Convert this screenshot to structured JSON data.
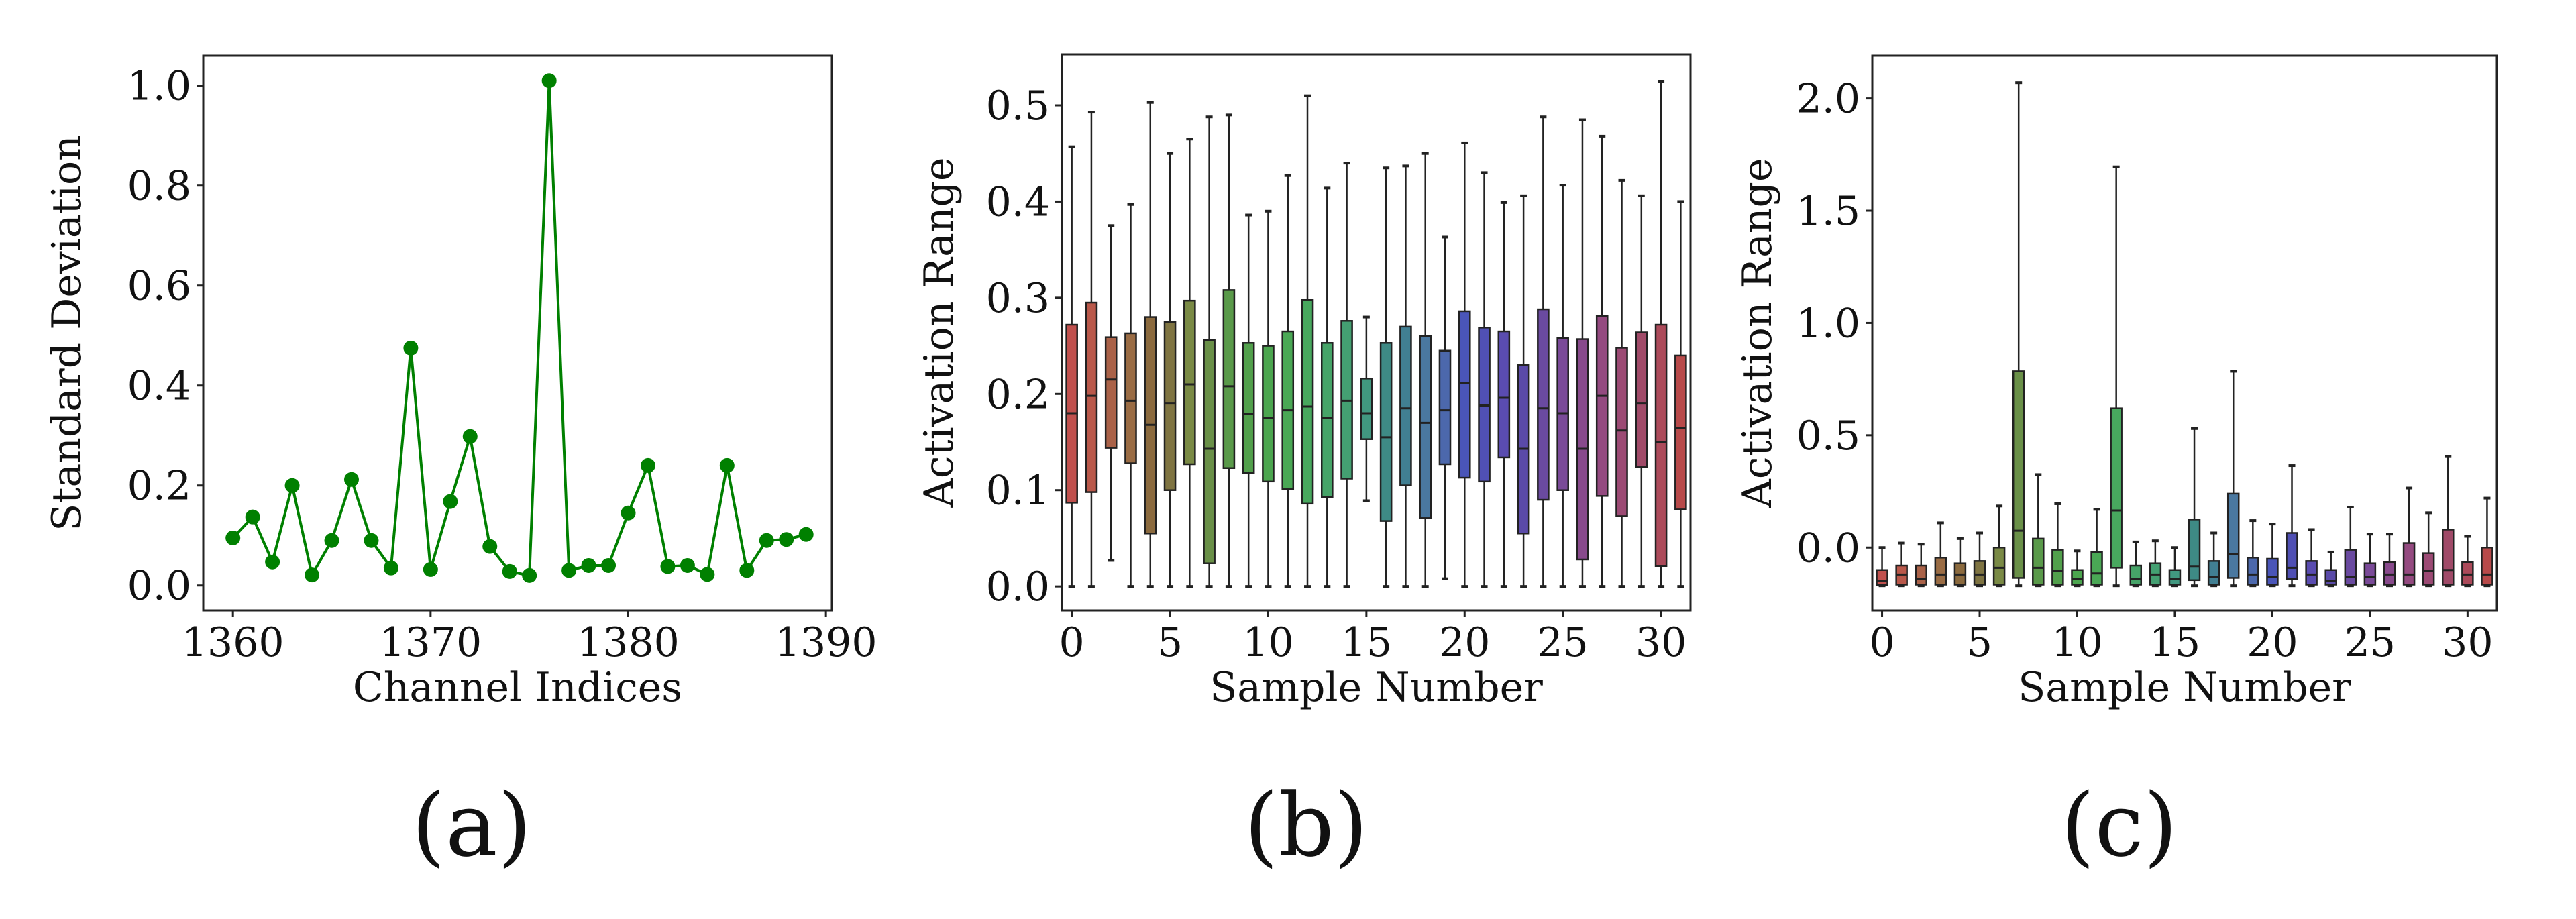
{
  "panel_labels": [
    "(a)",
    "(b)",
    "(c)"
  ],
  "box_colors": [
    "#c0504d",
    "#b9584a",
    "#aa6248",
    "#9a6c44",
    "#8b6a3e",
    "#7f7442",
    "#7a8a45",
    "#6a9048",
    "#5a9a4a",
    "#52a04c",
    "#4ca64f",
    "#4aa855",
    "#48a85e",
    "#46a468",
    "#44a072",
    "#419880",
    "#3e8a85",
    "#417f92",
    "#4a78a0",
    "#4c68ac",
    "#4a55b8",
    "#5050b4",
    "#5a4cb0",
    "#5a4aa8",
    "#6a4aa0",
    "#7a4a98",
    "#884a8c",
    "#944a80",
    "#9c4a74",
    "#a04a68",
    "#ac4a5a",
    "#b84a4a"
  ],
  "chart_data": [
    {
      "type": "line",
      "xlabel": "Channel Indices",
      "ylabel": "Standard Deviation",
      "color": "#008000",
      "marker": "circle",
      "xlim": [
        1358.5,
        1390.3
      ],
      "ylim": [
        -0.05,
        1.06
      ],
      "xticks": [
        1360,
        1370,
        1380,
        1390
      ],
      "yticks": [
        "0.0",
        "0.2",
        "0.4",
        "0.6",
        "0.8",
        "1.0"
      ],
      "x": [
        1360,
        1361,
        1362,
        1363,
        1364,
        1365,
        1366,
        1367,
        1368,
        1369,
        1370,
        1371,
        1372,
        1373,
        1374,
        1375,
        1376,
        1377,
        1378,
        1379,
        1380,
        1381,
        1382,
        1383,
        1384,
        1385,
        1386,
        1387,
        1388,
        1389
      ],
      "y": [
        0.095,
        0.137,
        0.047,
        0.2,
        0.021,
        0.09,
        0.212,
        0.09,
        0.035,
        0.475,
        0.032,
        0.168,
        0.298,
        0.078,
        0.028,
        0.02,
        1.01,
        0.03,
        0.04,
        0.04,
        0.145,
        0.24,
        0.038,
        0.04,
        0.022,
        0.24,
        0.03,
        0.09,
        0.092,
        0.102
      ],
      "grid": false
    },
    {
      "type": "box",
      "xlabel": "Sample Number",
      "ylabel": "Activation Range",
      "xlim": [
        -0.5,
        31.5
      ],
      "ylim": [
        -0.025,
        0.553
      ],
      "xticks": [
        0,
        5,
        10,
        15,
        20,
        25,
        30
      ],
      "yticks": [
        "0.0",
        "0.1",
        "0.2",
        "0.3",
        "0.4",
        "0.5"
      ],
      "boxes": [
        [
          0,
          0.087,
          0.18,
          0.272,
          0.457
        ],
        [
          0,
          0.098,
          0.198,
          0.295,
          0.493
        ],
        [
          0.027,
          0.144,
          0.215,
          0.259,
          0.375
        ],
        [
          0,
          0.128,
          0.193,
          0.263,
          0.397
        ],
        [
          0,
          0.055,
          0.168,
          0.28,
          0.503
        ],
        [
          0,
          0.1,
          0.19,
          0.275,
          0.45
        ],
        [
          0,
          0.127,
          0.21,
          0.297,
          0.465
        ],
        [
          0,
          0.024,
          0.143,
          0.256,
          0.488
        ],
        [
          0,
          0.123,
          0.208,
          0.308,
          0.49
        ],
        [
          0,
          0.118,
          0.179,
          0.253,
          0.386
        ],
        [
          0,
          0.109,
          0.175,
          0.25,
          0.39
        ],
        [
          0,
          0.101,
          0.183,
          0.265,
          0.427
        ],
        [
          0,
          0.086,
          0.187,
          0.298,
          0.51
        ],
        [
          0,
          0.093,
          0.175,
          0.253,
          0.414
        ],
        [
          0,
          0.112,
          0.193,
          0.276,
          0.44
        ],
        [
          0.089,
          0.153,
          0.18,
          0.216,
          0.28
        ],
        [
          0,
          0.068,
          0.155,
          0.253,
          0.435
        ],
        [
          0,
          0.105,
          0.185,
          0.27,
          0.437
        ],
        [
          0,
          0.071,
          0.17,
          0.26,
          0.45
        ],
        [
          0.008,
          0.127,
          0.183,
          0.245,
          0.363
        ],
        [
          0,
          0.113,
          0.211,
          0.286,
          0.461
        ],
        [
          0,
          0.109,
          0.188,
          0.269,
          0.43
        ],
        [
          0,
          0.134,
          0.196,
          0.265,
          0.399
        ],
        [
          0,
          0.055,
          0.143,
          0.23,
          0.406
        ],
        [
          0,
          0.09,
          0.185,
          0.288,
          0.488
        ],
        [
          0,
          0.1,
          0.18,
          0.258,
          0.417
        ],
        [
          0,
          0.028,
          0.143,
          0.257,
          0.485
        ],
        [
          0,
          0.094,
          0.198,
          0.281,
          0.468
        ],
        [
          0,
          0.073,
          0.162,
          0.248,
          0.422
        ],
        [
          0,
          0.124,
          0.19,
          0.264,
          0.406
        ],
        [
          0,
          0.021,
          0.15,
          0.272,
          0.525
        ],
        [
          0,
          0.08,
          0.165,
          0.24,
          0.4
        ]
      ],
      "box_format": [
        "whisker_low",
        "q1",
        "median",
        "q3",
        "whisker_high"
      ],
      "grid": false
    },
    {
      "type": "box",
      "xlabel": "Sample Number",
      "ylabel": "Activation Range",
      "xlim": [
        -0.5,
        31.5
      ],
      "ylim": [
        -0.28,
        2.19
      ],
      "xticks": [
        0,
        5,
        10,
        15,
        20,
        25,
        30
      ],
      "yticks": [
        "0.0",
        "0.5",
        "1.0",
        "1.5",
        "2.0"
      ],
      "boxes": [
        [
          -0.17,
          -0.167,
          -0.147,
          -0.1,
          0.0
        ],
        [
          -0.17,
          -0.165,
          -0.12,
          -0.08,
          0.02
        ],
        [
          -0.17,
          -0.165,
          -0.14,
          -0.08,
          0.015
        ],
        [
          -0.17,
          -0.165,
          -0.12,
          -0.045,
          0.11
        ],
        [
          -0.17,
          -0.165,
          -0.12,
          -0.07,
          0.04
        ],
        [
          -0.17,
          -0.165,
          -0.12,
          -0.06,
          0.065
        ],
        [
          -0.17,
          -0.165,
          -0.09,
          0.0,
          0.185
        ],
        [
          -0.17,
          -0.135,
          0.075,
          0.785,
          2.07
        ],
        [
          -0.17,
          -0.165,
          -0.09,
          0.04,
          0.325
        ],
        [
          -0.17,
          -0.165,
          -0.105,
          -0.01,
          0.195
        ],
        [
          -0.17,
          -0.165,
          -0.14,
          -0.1,
          -0.015
        ],
        [
          -0.17,
          -0.165,
          -0.115,
          -0.02,
          0.17
        ],
        [
          -0.17,
          -0.09,
          0.165,
          0.62,
          1.695
        ],
        [
          -0.17,
          -0.165,
          -0.14,
          -0.08,
          0.025
        ],
        [
          -0.17,
          -0.165,
          -0.12,
          -0.07,
          0.03
        ],
        [
          -0.17,
          -0.165,
          -0.14,
          -0.1,
          0.0
        ],
        [
          -0.17,
          -0.145,
          -0.085,
          0.125,
          0.53
        ],
        [
          -0.17,
          -0.165,
          -0.13,
          -0.06,
          0.065
        ],
        [
          -0.17,
          -0.135,
          -0.03,
          0.24,
          0.785
        ],
        [
          -0.17,
          -0.165,
          -0.12,
          -0.045,
          0.12
        ],
        [
          -0.17,
          -0.165,
          -0.13,
          -0.05,
          0.105
        ],
        [
          -0.17,
          -0.14,
          -0.09,
          0.065,
          0.365
        ],
        [
          -0.17,
          -0.165,
          -0.12,
          -0.06,
          0.08
        ],
        [
          -0.17,
          -0.165,
          -0.15,
          -0.1,
          -0.02
        ],
        [
          -0.17,
          -0.165,
          -0.13,
          -0.01,
          0.18
        ],
        [
          -0.17,
          -0.165,
          -0.13,
          -0.07,
          0.06
        ],
        [
          -0.17,
          -0.165,
          -0.12,
          -0.065,
          0.06
        ],
        [
          -0.17,
          -0.165,
          -0.12,
          0.02,
          0.265
        ],
        [
          -0.17,
          -0.165,
          -0.105,
          -0.025,
          0.155
        ],
        [
          -0.17,
          -0.165,
          -0.1,
          0.08,
          0.405
        ],
        [
          -0.17,
          -0.165,
          -0.12,
          -0.065,
          0.05
        ],
        [
          -0.17,
          -0.165,
          -0.12,
          0.0,
          0.22
        ]
      ],
      "box_format": [
        "whisker_low",
        "q1",
        "median",
        "q3",
        "whisker_high"
      ],
      "grid": false
    }
  ]
}
